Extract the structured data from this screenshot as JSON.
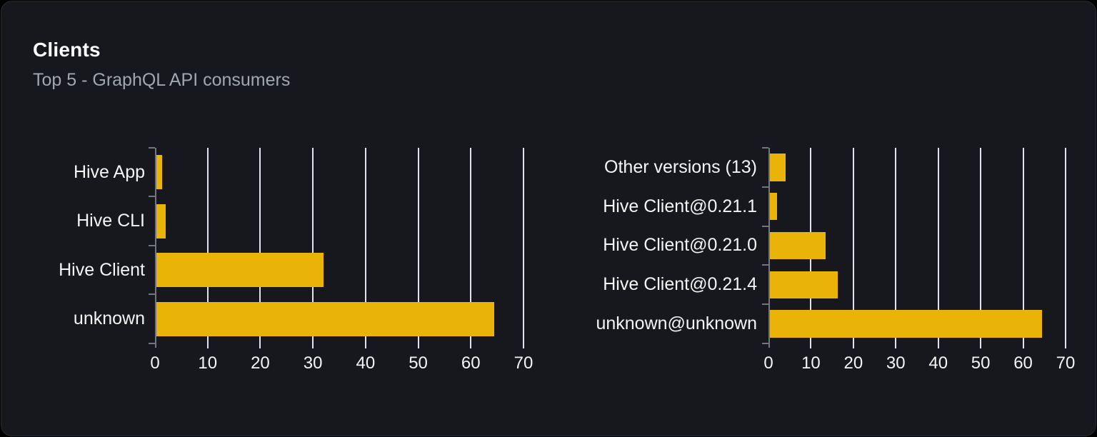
{
  "header": {
    "title": "Clients",
    "subtitle": "Top 5 - GraphQL API consumers"
  },
  "colors": {
    "page_bg": "#000000",
    "card_bg": "#16181d",
    "card_border": "#272c33",
    "bar": "#eab308",
    "gridline": "#dfe3ed",
    "axis": "#70757e",
    "title": "#ffffff",
    "subtitle": "#a1a7ae",
    "tick_label": "#f4f4f5"
  },
  "chart_data": [
    {
      "type": "bar",
      "orientation": "horizontal",
      "name": "clients-by-name",
      "categories": [
        "Hive App",
        "Hive CLI",
        "Hive Client",
        "unknown"
      ],
      "values": [
        1.3,
        2,
        32,
        64.5
      ],
      "xlim": [
        0,
        70
      ],
      "xticks": [
        0,
        10,
        20,
        30,
        40,
        50,
        60,
        70
      ],
      "grid": "vertical",
      "legend": "none",
      "title": "",
      "xlabel": "",
      "ylabel": ""
    },
    {
      "type": "bar",
      "orientation": "horizontal",
      "name": "clients-by-version",
      "categories": [
        "Other versions (13)",
        "Hive Client@0.21.1",
        "Hive Client@0.21.0",
        "Hive Client@0.21.4",
        "unknown@unknown"
      ],
      "values": [
        4,
        2,
        13.5,
        16.3,
        64.5
      ],
      "xlim": [
        0,
        70
      ],
      "xticks": [
        0,
        10,
        20,
        30,
        40,
        50,
        60,
        70
      ],
      "grid": "vertical",
      "legend": "none",
      "title": "",
      "xlabel": "",
      "ylabel": ""
    }
  ]
}
